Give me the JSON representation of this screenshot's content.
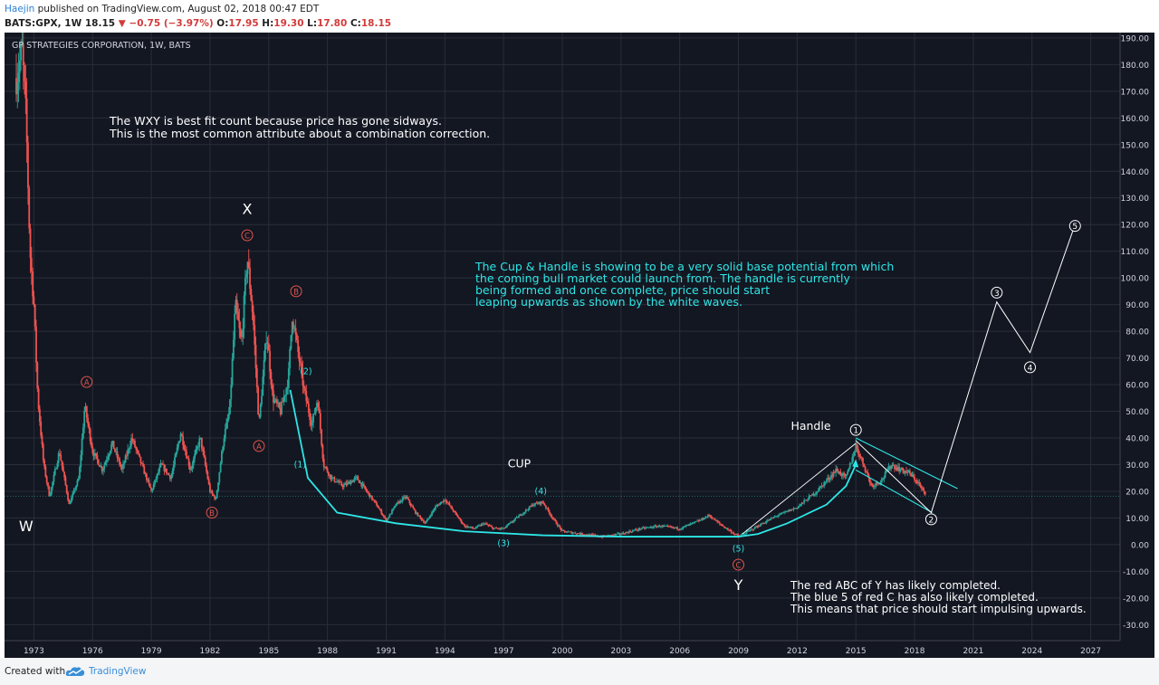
{
  "header": {
    "author": "Haejin",
    "published_text": "published on TradingView.com, August 02, 2018 00:47 EDT",
    "symbol": "BATS:GPX, 1W",
    "last": "18.15",
    "change": "−0.75 (−3.97%)",
    "o_label": "O:",
    "o_value": "17.95",
    "h_label": "H:",
    "h_value": "19.30",
    "l_label": "L:",
    "l_value": "17.80",
    "c_label": "C:",
    "c_value": "18.15"
  },
  "footer": {
    "created_with": "Created with",
    "brand": "TradingView"
  },
  "colors": {
    "background": "#131722",
    "grid": "#2a2e39",
    "candle_up": "#26a69a",
    "candle_down": "#ef5350",
    "cyan": "#2ee6e6",
    "red_annotation": "#e0554d",
    "white": "#ffffff",
    "price_tag": "#26a69a"
  },
  "chart_data": {
    "type": "candlestick",
    "title": "GP STRATEGIES CORPORATION, 1W, BATS",
    "x_ticks": [
      "1973",
      "1976",
      "1979",
      "1982",
      "1985",
      "1988",
      "1991",
      "1994",
      "1997",
      "2000",
      "2003",
      "2006",
      "2009",
      "2012",
      "2015",
      "2018",
      "2021",
      "2024",
      "2027"
    ],
    "xlim": [
      1971.5,
      2028.5
    ],
    "y_ticks": [
      "190.00",
      "180.00",
      "170.00",
      "160.00",
      "150.00",
      "140.00",
      "130.00",
      "120.00",
      "110.00",
      "100.00",
      "90.00",
      "80.00",
      "70.00",
      "60.00",
      "50.00",
      "40.00",
      "30.00",
      "20.00",
      "10.00",
      "0.00",
      "-10.00",
      "-20.00",
      "-30.00"
    ],
    "ylim": [
      -36,
      192
    ],
    "last_price": "18.15",
    "price_path": [
      [
        1972.1,
        175
      ],
      [
        1972.4,
        185
      ],
      [
        1972.6,
        160
      ],
      [
        1972.8,
        110
      ],
      [
        1973.0,
        90
      ],
      [
        1973.2,
        55
      ],
      [
        1973.5,
        30
      ],
      [
        1973.8,
        18
      ],
      [
        1974.3,
        35
      ],
      [
        1974.8,
        15
      ],
      [
        1975.3,
        25
      ],
      [
        1975.6,
        52
      ],
      [
        1976.0,
        35
      ],
      [
        1976.5,
        28
      ],
      [
        1977.0,
        38
      ],
      [
        1977.5,
        28
      ],
      [
        1978.0,
        40
      ],
      [
        1978.5,
        30
      ],
      [
        1979.0,
        20
      ],
      [
        1979.5,
        30
      ],
      [
        1980.0,
        25
      ],
      [
        1980.5,
        42
      ],
      [
        1981.0,
        28
      ],
      [
        1981.5,
        40
      ],
      [
        1982.0,
        20
      ],
      [
        1982.3,
        17
      ],
      [
        1982.7,
        40
      ],
      [
        1983.0,
        50
      ],
      [
        1983.3,
        90
      ],
      [
        1983.6,
        75
      ],
      [
        1983.9,
        108
      ],
      [
        1984.2,
        85
      ],
      [
        1984.5,
        45
      ],
      [
        1984.9,
        80
      ],
      [
        1985.2,
        55
      ],
      [
        1985.6,
        50
      ],
      [
        1986.0,
        62
      ],
      [
        1986.2,
        86
      ],
      [
        1986.5,
        72
      ],
      [
        1986.8,
        58
      ],
      [
        1987.2,
        45
      ],
      [
        1987.5,
        55
      ],
      [
        1987.8,
        30
      ],
      [
        1988.2,
        25
      ],
      [
        1988.8,
        22
      ],
      [
        1989.5,
        25
      ],
      [
        1990.0,
        20
      ],
      [
        1990.5,
        15
      ],
      [
        1991.0,
        9
      ],
      [
        1991.5,
        15
      ],
      [
        1992.0,
        18
      ],
      [
        1992.5,
        12
      ],
      [
        1993.0,
        8
      ],
      [
        1993.5,
        14
      ],
      [
        1994.0,
        17
      ],
      [
        1994.5,
        12
      ],
      [
        1995.0,
        7
      ],
      [
        1995.5,
        6
      ],
      [
        1996.0,
        8
      ],
      [
        1996.5,
        6
      ],
      [
        1997.0,
        6
      ],
      [
        1997.5,
        9
      ],
      [
        1998.0,
        12
      ],
      [
        1998.5,
        15
      ],
      [
        1999.0,
        16
      ],
      [
        1999.5,
        10
      ],
      [
        2000.0,
        5
      ],
      [
        2001.0,
        4
      ],
      [
        2002.0,
        3
      ],
      [
        2003.0,
        4
      ],
      [
        2004.0,
        6
      ],
      [
        2005.0,
        7
      ],
      [
        2006.0,
        6
      ],
      [
        2007.0,
        9
      ],
      [
        2007.5,
        11
      ],
      [
        2008.0,
        8
      ],
      [
        2008.6,
        5
      ],
      [
        2009.0,
        3
      ],
      [
        2009.5,
        5
      ],
      [
        2010.0,
        7
      ],
      [
        2011.0,
        11
      ],
      [
        2012.0,
        14
      ],
      [
        2013.0,
        20
      ],
      [
        2014.0,
        28
      ],
      [
        2014.5,
        25
      ],
      [
        2015.0,
        37
      ],
      [
        2015.4,
        30
      ],
      [
        2015.8,
        22
      ],
      [
        2016.3,
        24
      ],
      [
        2016.8,
        30
      ],
      [
        2017.3,
        28
      ],
      [
        2017.7,
        27
      ],
      [
        2018.2,
        23
      ],
      [
        2018.58,
        18.15
      ]
    ],
    "cup_curve": [
      [
        1986.1,
        58
      ],
      [
        1987.0,
        25
      ],
      [
        1988.5,
        12
      ],
      [
        1991.5,
        8
      ],
      [
        1995,
        5
      ],
      [
        1999,
        3.5
      ],
      [
        2003,
        3
      ],
      [
        2009,
        3
      ],
      [
        2010,
        4
      ],
      [
        2011.5,
        8
      ],
      [
        2013.5,
        15
      ],
      [
        2014.5,
        22
      ],
      [
        2015.0,
        30
      ]
    ],
    "handle_channel": {
      "upper": [
        [
          2015.0,
          40
        ],
        [
          2020.2,
          21
        ]
      ],
      "lower": [
        [
          2015.0,
          28
        ],
        [
          2018.9,
          12
        ]
      ],
      "support": [
        [
          2009.2,
          4
        ],
        [
          2015.0,
          38
        ]
      ]
    },
    "white_wave_path": [
      [
        2015.0,
        39
      ],
      [
        2018.85,
        12
      ],
      [
        2022.2,
        91
      ],
      [
        2023.9,
        72
      ],
      [
        2026.2,
        120
      ]
    ],
    "white_wave_labels": [
      {
        "label": "1",
        "x": 2015.0,
        "y": 43
      },
      {
        "label": "2",
        "x": 2018.85,
        "y": 9.5
      },
      {
        "label": "3",
        "x": 2022.2,
        "y": 94.5
      },
      {
        "label": "4",
        "x": 2023.9,
        "y": 66.5
      },
      {
        "label": "5",
        "x": 2026.2,
        "y": 119.5
      }
    ],
    "red_labels": [
      {
        "label": "A",
        "x": 1975.7,
        "y": 61
      },
      {
        "label": "B",
        "x": 1982.1,
        "y": 12
      },
      {
        "label": "C",
        "x": 1983.9,
        "y": 116
      },
      {
        "label": "A",
        "x": 1984.5,
        "y": 37
      },
      {
        "label": "B",
        "x": 1986.4,
        "y": 95
      },
      {
        "label": "C",
        "x": 2009.0,
        "y": -7.5
      }
    ],
    "cyan_labels": [
      {
        "label": "(1)",
        "x": 1986.6,
        "y": 29
      },
      {
        "label": "(2)",
        "x": 1986.9,
        "y": 64
      },
      {
        "label": "(3)",
        "x": 1997.0,
        "y": -0.5
      },
      {
        "label": "(4)",
        "x": 1998.9,
        "y": 19
      },
      {
        "label": "(5)",
        "x": 2009.0,
        "y": -2.5
      }
    ],
    "wave_letters": [
      {
        "label": "W",
        "x": 1972.6,
        "y": 5
      },
      {
        "label": "X",
        "x": 1983.9,
        "y": 124
      },
      {
        "label": "Y",
        "x": 2009.0,
        "y": -17
      }
    ],
    "notes": [
      {
        "id": "cup",
        "text": "CUP",
        "x": 1997.8,
        "y": 29
      },
      {
        "id": "handle",
        "text": "Handle",
        "x": 2012.7,
        "y": 43
      }
    ],
    "annotations": {
      "wxy": [
        "The WXY is best fit count because price has gone sidways.",
        "This is the most common attribute about a combination correction."
      ],
      "cup_handle": [
        "The Cup & Handle is showing to be a very solid base potential from which",
        "the coming bull market could launch from. The handle is currently",
        "being formed and once complete, price should start",
        "leaping upwards as shown by the white waves."
      ],
      "abc": [
        "The red ABC of Y has likely completed.",
        "The blue 5 of red C has also likely completed.",
        "This means that price should start impulsing upwards."
      ]
    }
  }
}
